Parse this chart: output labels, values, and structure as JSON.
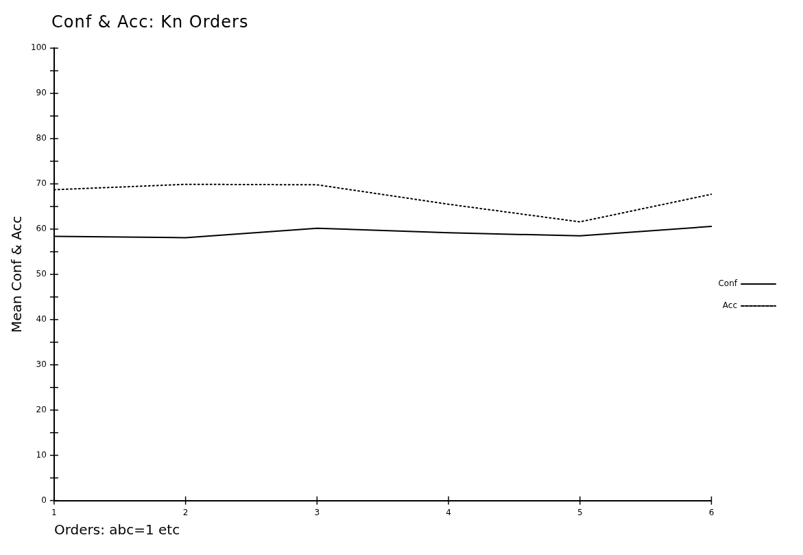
{
  "chart_data": {
    "type": "line",
    "title": "Conf & Acc: Kn Orders",
    "xlabel": "Orders: abc=1 etc",
    "ylabel": "Mean Conf & Acc",
    "categories": [
      "1",
      "2",
      "3",
      "4",
      "5",
      "6"
    ],
    "series": [
      {
        "name": "Conf",
        "color": "#000000",
        "line_style": "solid",
        "values": [
          58.4,
          58.1,
          60.2,
          59.2,
          58.5,
          60.6
        ]
      },
      {
        "name": "Acc",
        "color": "#000000",
        "line_style": "dotted",
        "values": [
          68.7,
          69.9,
          69.8,
          65.5,
          61.6,
          67.7
        ]
      }
    ],
    "ylim": [
      0,
      100
    ],
    "yticks": [
      0,
      {
        "value": 5,
        "label": null
      },
      10,
      {
        "value": 15,
        "label": null
      },
      20,
      {
        "value": 25,
        "label": null
      },
      30,
      {
        "value": 35,
        "label": null
      },
      40,
      {
        "value": 45,
        "label": null
      },
      50,
      {
        "value": 55,
        "label": null
      },
      60,
      {
        "value": 65,
        "label": null
      },
      70,
      {
        "value": 75,
        "label": null
      },
      80,
      {
        "value": 85,
        "label": null
      },
      90,
      {
        "value": 95,
        "label": null
      },
      100
    ],
    "grid": false,
    "legend": "right",
    "marker": "none"
  }
}
